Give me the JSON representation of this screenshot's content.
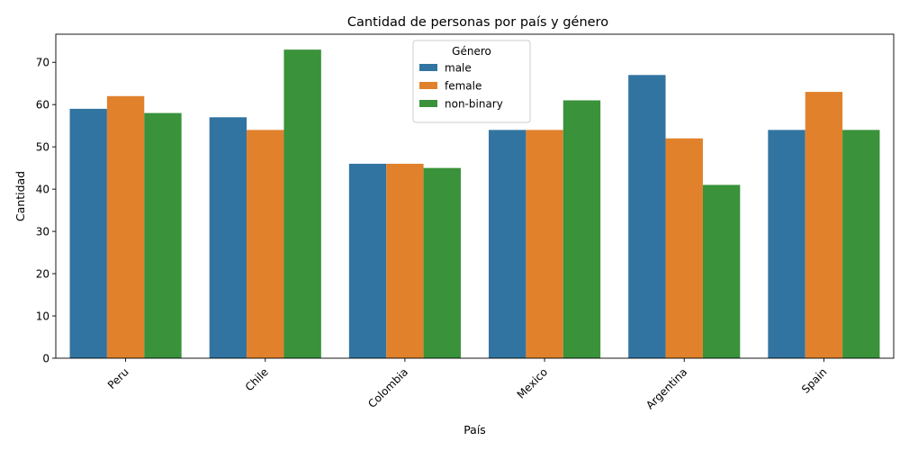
{
  "chart_data": {
    "type": "bar",
    "title": "Cantidad de personas por país y género",
    "xlabel": "País",
    "ylabel": "Cantidad",
    "categories": [
      "Peru",
      "Chile",
      "Colombia",
      "Mexico",
      "Argentina",
      "Spain"
    ],
    "series": [
      {
        "name": "male",
        "color": "#3274a1",
        "values": [
          59,
          57,
          46,
          54,
          67,
          54
        ]
      },
      {
        "name": "female",
        "color": "#e1812c",
        "values": [
          62,
          54,
          46,
          54,
          52,
          63
        ]
      },
      {
        "name": "non-binary",
        "color": "#3a923a",
        "values": [
          58,
          73,
          45,
          61,
          41,
          54
        ]
      }
    ],
    "ylim": [
      0,
      76.65
    ],
    "yticks": [
      0,
      10,
      20,
      30,
      40,
      50,
      60,
      70
    ],
    "legend": {
      "title": "Género",
      "placement": "top-center"
    },
    "grid": false
  }
}
